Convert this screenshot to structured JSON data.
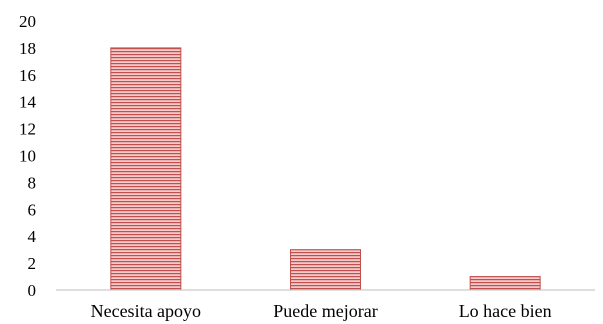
{
  "chart_data": {
    "type": "bar",
    "title": "",
    "xlabel": "",
    "ylabel": "",
    "categories": [
      "Necesita apoyo",
      "Puede mejorar",
      "Lo hace bien"
    ],
    "values": [
      18,
      3,
      1
    ],
    "ylim": [
      0,
      20
    ],
    "yticks": [
      "0",
      "2",
      "4",
      "6",
      "8",
      "10",
      "12",
      "14",
      "16",
      "18",
      "20"
    ],
    "grid": false,
    "legend": "none",
    "bar_color": "#c0504d",
    "bar_fill": "#e8a5a5"
  }
}
